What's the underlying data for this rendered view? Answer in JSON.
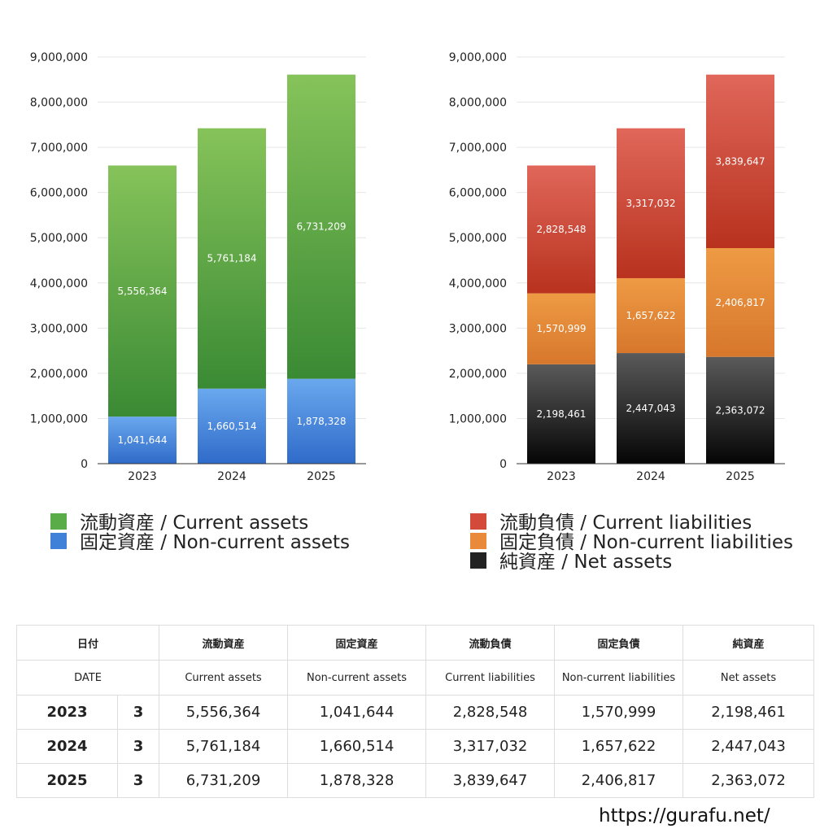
{
  "chart_data": [
    {
      "type": "bar",
      "stacked": true,
      "categories": [
        "2023",
        "2024",
        "2025"
      ],
      "ylim": [
        0,
        9000000
      ],
      "yticks": [
        "0",
        "1,000,000",
        "2,000,000",
        "3,000,000",
        "4,000,000",
        "5,000,000",
        "6,000,000",
        "7,000,000",
        "8,000,000",
        "9,000,000"
      ],
      "grid": true,
      "series": [
        {
          "name": "固定資産 / Non-current assets",
          "values": [
            1041644,
            1660514,
            1878328
          ],
          "labels": [
            "1,041,644",
            "1,660,514",
            "1,878,328"
          ],
          "color_top": "#6aa8ee",
          "color_bottom": "#2f6bc9"
        },
        {
          "name": "流動資産 / Current assets",
          "values": [
            5556364,
            5761184,
            6731209
          ],
          "labels": [
            "5,556,364",
            "5,761,184",
            "6,731,209"
          ],
          "color_top": "#86c35a",
          "color_bottom": "#3a8a34"
        }
      ],
      "legend_position": "bottom",
      "legend": [
        {
          "label": "流動資産 / Current assets",
          "color": "#5aac48"
        },
        {
          "label": "固定資産 / Non-current assets",
          "color": "#3f80d8"
        }
      ]
    },
    {
      "type": "bar",
      "stacked": true,
      "categories": [
        "2023",
        "2024",
        "2025"
      ],
      "ylim": [
        0,
        9000000
      ],
      "yticks": [
        "0",
        "1,000,000",
        "2,000,000",
        "3,000,000",
        "4,000,000",
        "5,000,000",
        "6,000,000",
        "7,000,000",
        "8,000,000",
        "9,000,000"
      ],
      "grid": true,
      "series": [
        {
          "name": "純資産 / Net assets",
          "values": [
            2198461,
            2447043,
            2363072
          ],
          "labels": [
            "2,198,461",
            "2,447,043",
            "2,363,072"
          ],
          "color_top": "#5a5a5a",
          "color_bottom": "#050505"
        },
        {
          "name": "固定負債 / Non-current liabilities",
          "values": [
            1570999,
            1657622,
            2406817
          ],
          "labels": [
            "1,570,999",
            "1,657,622",
            "2,406,817"
          ],
          "color_top": "#ee9a44",
          "color_bottom": "#d7772c"
        },
        {
          "name": "流動負債 / Current liabilities",
          "values": [
            2828548,
            3317032,
            3839647
          ],
          "labels": [
            "2,828,548",
            "3,317,032",
            "3,839,647"
          ],
          "color_top": "#e0675a",
          "color_bottom": "#b8321e"
        }
      ],
      "legend_position": "bottom",
      "legend": [
        {
          "label": "流動負債 / Current liabilities",
          "color": "#d44a3a"
        },
        {
          "label": "固定負債 / Non-current liabilities",
          "color": "#e88a3a"
        },
        {
          "label": "純資産 / Net assets",
          "color": "#222222"
        }
      ]
    }
  ],
  "table": {
    "header_jp": [
      "日付",
      "流動資産",
      "固定資産",
      "流動負債",
      "固定負債",
      "純資産"
    ],
    "header_en": [
      "DATE",
      "Current assets",
      "Non-current assets",
      "Current liabilities",
      "Non-current liabilities",
      "Net assets"
    ],
    "rows": [
      {
        "year": "2023",
        "month": "3",
        "values": [
          "5,556,364",
          "1,041,644",
          "2,828,548",
          "1,570,999",
          "2,198,461"
        ]
      },
      {
        "year": "2024",
        "month": "3",
        "values": [
          "5,761,184",
          "1,660,514",
          "3,317,032",
          "1,657,622",
          "2,447,043"
        ]
      },
      {
        "year": "2025",
        "month": "3",
        "values": [
          "6,731,209",
          "1,878,328",
          "3,839,647",
          "2,406,817",
          "2,363,072"
        ]
      }
    ]
  },
  "footer": {
    "url": "https://gurafu.net/"
  }
}
